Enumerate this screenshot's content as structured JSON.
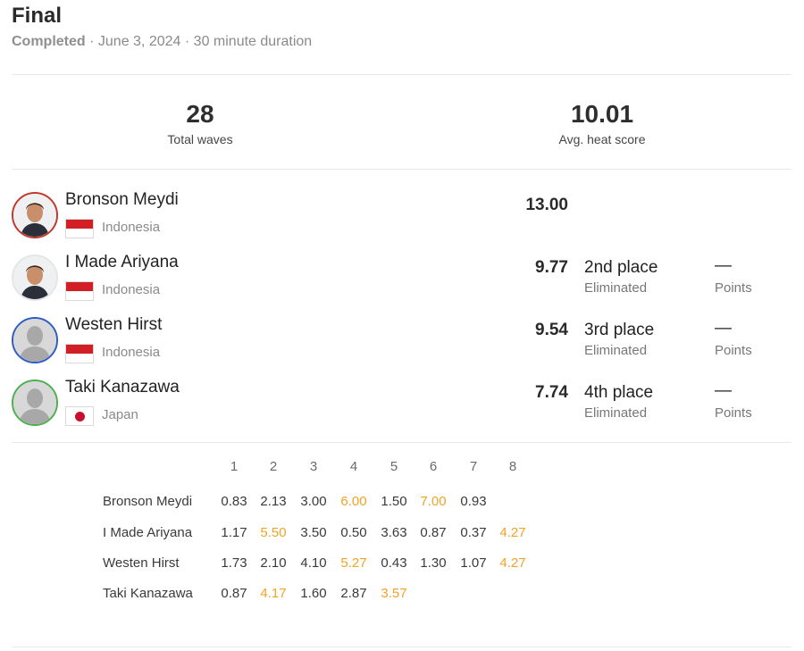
{
  "heat": {
    "title": "Final",
    "status": "Completed",
    "date": "June 3, 2024",
    "duration": "30 minute duration",
    "separator": "·"
  },
  "stats": {
    "total_waves_value": "28",
    "total_waves_label": "Total waves",
    "avg_score_value": "10.01",
    "avg_score_label": "Avg. heat score"
  },
  "athletes": [
    {
      "name": "Bronson Meydi",
      "country": "Indonesia",
      "flag": "indonesia-flag-icon",
      "ring_color": "#c0392b",
      "photo": "athlete-photo",
      "score": "13.00",
      "place": "",
      "place_sub": "",
      "points": "",
      "points_sub": ""
    },
    {
      "name": "I Made Ariyana",
      "country": "Indonesia",
      "flag": "indonesia-flag-icon",
      "ring_color": "#e6e6e6",
      "photo": "athlete-photo",
      "score": "9.77",
      "place": "2nd place",
      "place_sub": "Eliminated",
      "points": "—",
      "points_sub": "Points"
    },
    {
      "name": "Westen Hirst",
      "country": "Indonesia",
      "flag": "indonesia-flag-icon",
      "ring_color": "#2f5cc4",
      "photo": "placeholder-avatar",
      "score": "9.54",
      "place": "3rd place",
      "place_sub": "Eliminated",
      "points": "—",
      "points_sub": "Points"
    },
    {
      "name": "Taki Kanazawa",
      "country": "Japan",
      "flag": "japan-flag-icon",
      "ring_color": "#4caf50",
      "photo": "placeholder-avatar",
      "score": "7.74",
      "place": "4th place",
      "place_sub": "Eliminated",
      "points": "—",
      "points_sub": "Points"
    }
  ],
  "wave_scores": {
    "columns": [
      "1",
      "2",
      "3",
      "4",
      "5",
      "6",
      "7",
      "8"
    ],
    "highlight_color": "#f0a326",
    "rows": [
      {
        "name": "Bronson Meydi",
        "waves": [
          "0.83",
          "2.13",
          "3.00",
          "6.00",
          "1.50",
          "7.00",
          "0.93"
        ],
        "counting": [
          false,
          false,
          false,
          true,
          false,
          true,
          false
        ]
      },
      {
        "name": "I Made Ariyana",
        "waves": [
          "1.17",
          "5.50",
          "3.50",
          "0.50",
          "3.63",
          "0.87",
          "0.37",
          "4.27"
        ],
        "counting": [
          false,
          true,
          false,
          false,
          false,
          false,
          false,
          true
        ]
      },
      {
        "name": "Westen Hirst",
        "waves": [
          "1.73",
          "2.10",
          "4.10",
          "5.27",
          "0.43",
          "1.30",
          "1.07",
          "4.27"
        ],
        "counting": [
          false,
          false,
          false,
          true,
          false,
          false,
          false,
          true
        ]
      },
      {
        "name": "Taki Kanazawa",
        "waves": [
          "0.87",
          "4.17",
          "1.60",
          "2.87",
          "3.57"
        ],
        "counting": [
          false,
          true,
          false,
          false,
          true
        ]
      }
    ]
  }
}
